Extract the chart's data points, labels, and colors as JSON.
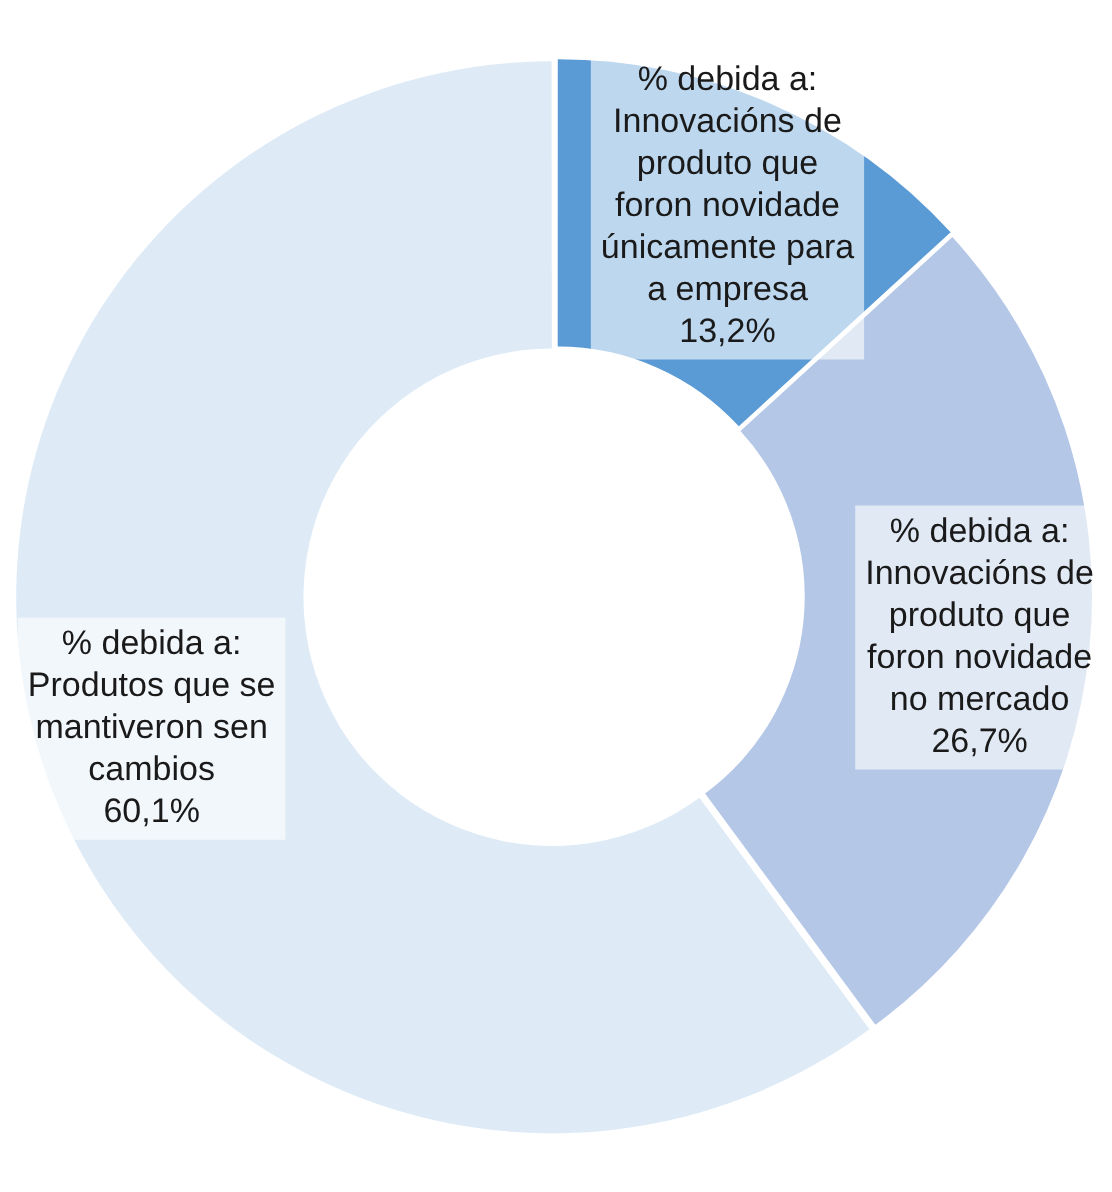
{
  "chart_data": {
    "type": "donut",
    "categories": [
      "% debida a: Innovacións de produto que foron novidade únicamente para a empresa",
      "% debida a: Innovacións de produto que foron novidade no mercado",
      "% debida a: Produtos que se mantiveron sen cambios"
    ],
    "values": [
      13.2,
      26.7,
      60.1
    ],
    "value_labels": [
      "13,2%",
      "26,7%",
      "60,1%"
    ],
    "colors": [
      "#5b9bd5",
      "#b4c7e7",
      "#deebf7"
    ],
    "legend": false
  }
}
